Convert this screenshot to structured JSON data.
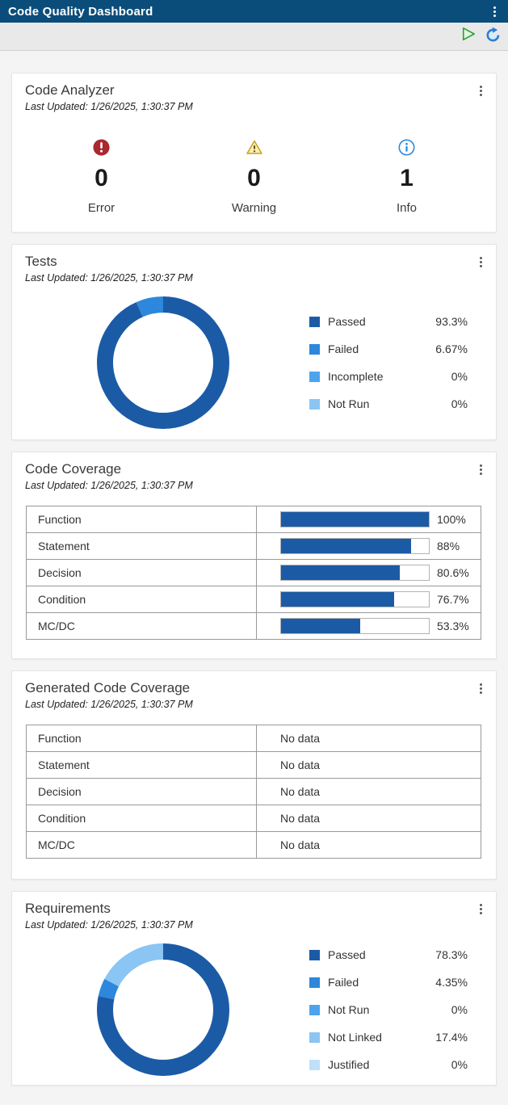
{
  "app": {
    "title": "Code Quality Dashboard"
  },
  "colors": {
    "header_bg": "#0b4d7a",
    "bar_fill": "#1b5ba6",
    "donut_palette": [
      "#1b5ba6",
      "#2d87dc",
      "#4da4ec",
      "#8ac5f3",
      "#c0e0f9"
    ],
    "error": "#a8292f",
    "warning": "#c9a227",
    "info": "#2e8ce0"
  },
  "toolbar": {
    "run_icon": "run-play-icon",
    "refresh_icon": "refresh-icon"
  },
  "cards": {
    "code_analyzer": {
      "title": "Code Analyzer",
      "last_updated": "Last Updated: 1/26/2025, 1:30:37 PM",
      "stats": [
        {
          "icon": "error-icon",
          "count": "0",
          "label": "Error",
          "color": "#a8292f"
        },
        {
          "icon": "warning-icon",
          "count": "0",
          "label": "Warning",
          "color": "#c9a227"
        },
        {
          "icon": "info-icon",
          "count": "1",
          "label": "Info",
          "color": "#2e8ce0"
        }
      ]
    },
    "tests": {
      "title": "Tests",
      "last_updated": "Last Updated: 1/26/2025, 1:30:37 PM",
      "chart_type": "donut",
      "legend": [
        {
          "label": "Passed",
          "value": 93.3,
          "display": "93.3%",
          "color": "#1b5ba6"
        },
        {
          "label": "Failed",
          "value": 6.67,
          "display": "6.67%",
          "color": "#2d87dc"
        },
        {
          "label": "Incomplete",
          "value": 0,
          "display": "0%",
          "color": "#4da4ec"
        },
        {
          "label": "Not Run",
          "value": 0,
          "display": "0%",
          "color": "#8ac5f3"
        }
      ]
    },
    "code_coverage": {
      "title": "Code Coverage",
      "last_updated": "Last Updated: 1/26/2025, 1:30:37 PM",
      "rows": [
        {
          "label": "Function",
          "value": 100,
          "display": "100%"
        },
        {
          "label": "Statement",
          "value": 88,
          "display": "88%"
        },
        {
          "label": "Decision",
          "value": 80.6,
          "display": "80.6%"
        },
        {
          "label": "Condition",
          "value": 76.7,
          "display": "76.7%"
        },
        {
          "label": "MC/DC",
          "value": 53.3,
          "display": "53.3%"
        }
      ]
    },
    "generated_code_coverage": {
      "title": "Generated Code Coverage",
      "last_updated": "Last Updated: 1/26/2025, 1:30:37 PM",
      "rows": [
        {
          "label": "Function",
          "display": "No data"
        },
        {
          "label": "Statement",
          "display": "No data"
        },
        {
          "label": "Decision",
          "display": "No data"
        },
        {
          "label": "Condition",
          "display": "No data"
        },
        {
          "label": "MC/DC",
          "display": "No data"
        }
      ]
    },
    "requirements": {
      "title": "Requirements",
      "last_updated": "Last Updated: 1/26/2025, 1:30:37 PM",
      "chart_type": "donut",
      "legend": [
        {
          "label": "Passed",
          "value": 78.3,
          "display": "78.3%",
          "color": "#1b5ba6"
        },
        {
          "label": "Failed",
          "value": 4.35,
          "display": "4.35%",
          "color": "#2d87dc"
        },
        {
          "label": "Not Run",
          "value": 0,
          "display": "0%",
          "color": "#4da4ec"
        },
        {
          "label": "Not Linked",
          "value": 17.4,
          "display": "17.4%",
          "color": "#8ac5f3"
        },
        {
          "label": "Justified",
          "value": 0,
          "display": "0%",
          "color": "#c0e0f9"
        }
      ]
    }
  }
}
